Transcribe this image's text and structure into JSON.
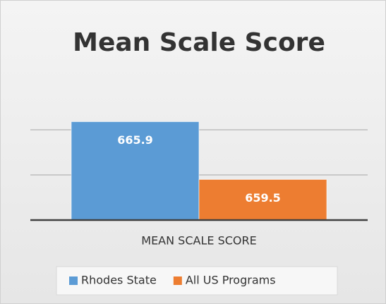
{
  "chart_data": {
    "type": "bar",
    "title": "Mean Scale Score",
    "categories": [
      "MEAN SCALE SCORE"
    ],
    "series": [
      {
        "name": "Rhodes State",
        "color": "#5b9bd5",
        "values": [
          665.9
        ]
      },
      {
        "name": "All US Programs",
        "color": "#ed7d31",
        "values": [
          659.5
        ]
      }
    ],
    "ylim": [
      655,
      670
    ],
    "yticks": [
      655,
      660,
      665
    ],
    "grid": true,
    "legend": "bottom"
  }
}
